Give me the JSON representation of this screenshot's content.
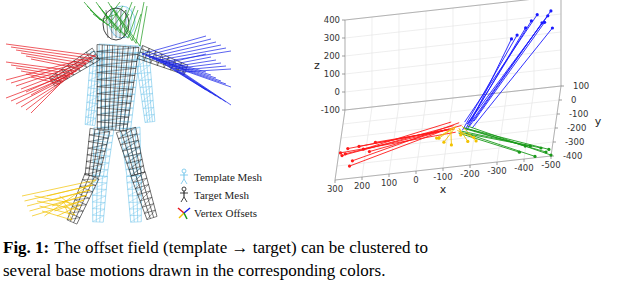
{
  "figure": {
    "legend": [
      {
        "label": "Template Mesh"
      },
      {
        "label": "Target Mesh"
      },
      {
        "label": "Vertex Offsets"
      }
    ]
  },
  "chart_data": {
    "type": "vectors3d",
    "x_label": "x",
    "y_label": "y",
    "z_label": "z",
    "xlim": [
      -500,
      300
    ],
    "ylim": [
      -400,
      100
    ],
    "zlim": [
      -100,
      400
    ],
    "xticks": [
      300,
      200,
      100,
      0,
      -100,
      -200,
      -300,
      -400,
      -500
    ],
    "yticks": [
      100,
      0,
      -100,
      -200,
      -300,
      -400
    ],
    "zticks": [
      400,
      300,
      200,
      100,
      0,
      -100
    ],
    "grid": true,
    "marker": "circle",
    "series": [
      {
        "color": "#ff1a1a",
        "start": [
          [
            -120,
            -140,
            -70
          ],
          [
            -100,
            -150,
            -80
          ],
          [
            -140,
            -130,
            -65
          ],
          [
            -90,
            -160,
            -75
          ],
          [
            -130,
            -170,
            -85
          ],
          [
            -110,
            -125,
            -60
          ],
          [
            -150,
            -145,
            -70
          ],
          [
            -95,
            -135,
            -90
          ],
          [
            -125,
            -155,
            -78
          ],
          [
            -105,
            -165,
            -68
          ]
        ],
        "end": [
          [
            280,
            -320,
            -30
          ],
          [
            260,
            -300,
            -10
          ],
          [
            240,
            -340,
            -50
          ],
          [
            220,
            -280,
            -20
          ],
          [
            290,
            -260,
            -60
          ],
          [
            200,
            -330,
            0
          ],
          [
            180,
            -300,
            -40
          ],
          [
            250,
            -350,
            -70
          ],
          [
            160,
            -270,
            -15
          ],
          [
            270,
            -290,
            -45
          ]
        ]
      },
      {
        "color": "#1a1aff",
        "start": [
          [
            -170,
            -140,
            -70
          ],
          [
            -180,
            -150,
            -75
          ],
          [
            -160,
            -130,
            -65
          ],
          [
            -190,
            -160,
            -80
          ],
          [
            -175,
            -145,
            -60
          ],
          [
            -165,
            -155,
            -85
          ],
          [
            -185,
            -125,
            -70
          ],
          [
            -155,
            -170,
            -78
          ],
          [
            -195,
            -135,
            -62
          ],
          [
            -170,
            -165,
            -88
          ]
        ],
        "end": [
          [
            -460,
            -20,
            390
          ],
          [
            -440,
            -40,
            370
          ],
          [
            -420,
            -10,
            395
          ],
          [
            -480,
            -60,
            350
          ],
          [
            -400,
            -30,
            380
          ],
          [
            -380,
            -50,
            360
          ],
          [
            -470,
            0,
            400
          ],
          [
            -350,
            -70,
            340
          ],
          [
            -450,
            -45,
            375
          ],
          [
            -330,
            -80,
            330
          ]
        ]
      },
      {
        "color": "#1a9a1a",
        "start": [
          [
            -160,
            -150,
            -85
          ],
          [
            -150,
            -160,
            -90
          ],
          [
            -170,
            -140,
            -80
          ],
          [
            -145,
            -170,
            -88
          ],
          [
            -165,
            -175,
            -92
          ],
          [
            -155,
            -145,
            -82
          ],
          [
            -175,
            -155,
            -86
          ],
          [
            -140,
            -165,
            -95
          ]
        ],
        "end": [
          [
            -480,
            -380,
            -90
          ],
          [
            -460,
            -360,
            -80
          ],
          [
            -500,
            -400,
            -95
          ],
          [
            -420,
            -350,
            -70
          ],
          [
            -440,
            -390,
            -100
          ],
          [
            -400,
            -340,
            -75
          ],
          [
            -490,
            -370,
            -85
          ],
          [
            -380,
            -360,
            -90
          ]
        ]
      },
      {
        "color": "#f2c200",
        "start": [
          [
            -130,
            -140,
            -75
          ],
          [
            -140,
            -150,
            -80
          ],
          [
            -120,
            -160,
            -70
          ],
          [
            -150,
            -130,
            -85
          ],
          [
            -110,
            -145,
            -78
          ],
          [
            -145,
            -165,
            -72
          ],
          [
            -125,
            -135,
            -82
          ],
          [
            -135,
            -155,
            -88
          ]
        ],
        "end": [
          [
            -90,
            -220,
            -95
          ],
          [
            -180,
            -240,
            -90
          ],
          [
            -70,
            -200,
            -85
          ],
          [
            -210,
            -230,
            -100
          ],
          [
            -120,
            -250,
            -92
          ],
          [
            -150,
            -190,
            -88
          ],
          [
            -60,
            -180,
            -98
          ],
          [
            -200,
            -210,
            -95
          ]
        ]
      }
    ]
  },
  "caption": {
    "label": "Fig. 1:",
    "lines": [
      "The offset field (template → target) can be clustered to",
      "several base motions drawn in the corresponding colors."
    ]
  }
}
